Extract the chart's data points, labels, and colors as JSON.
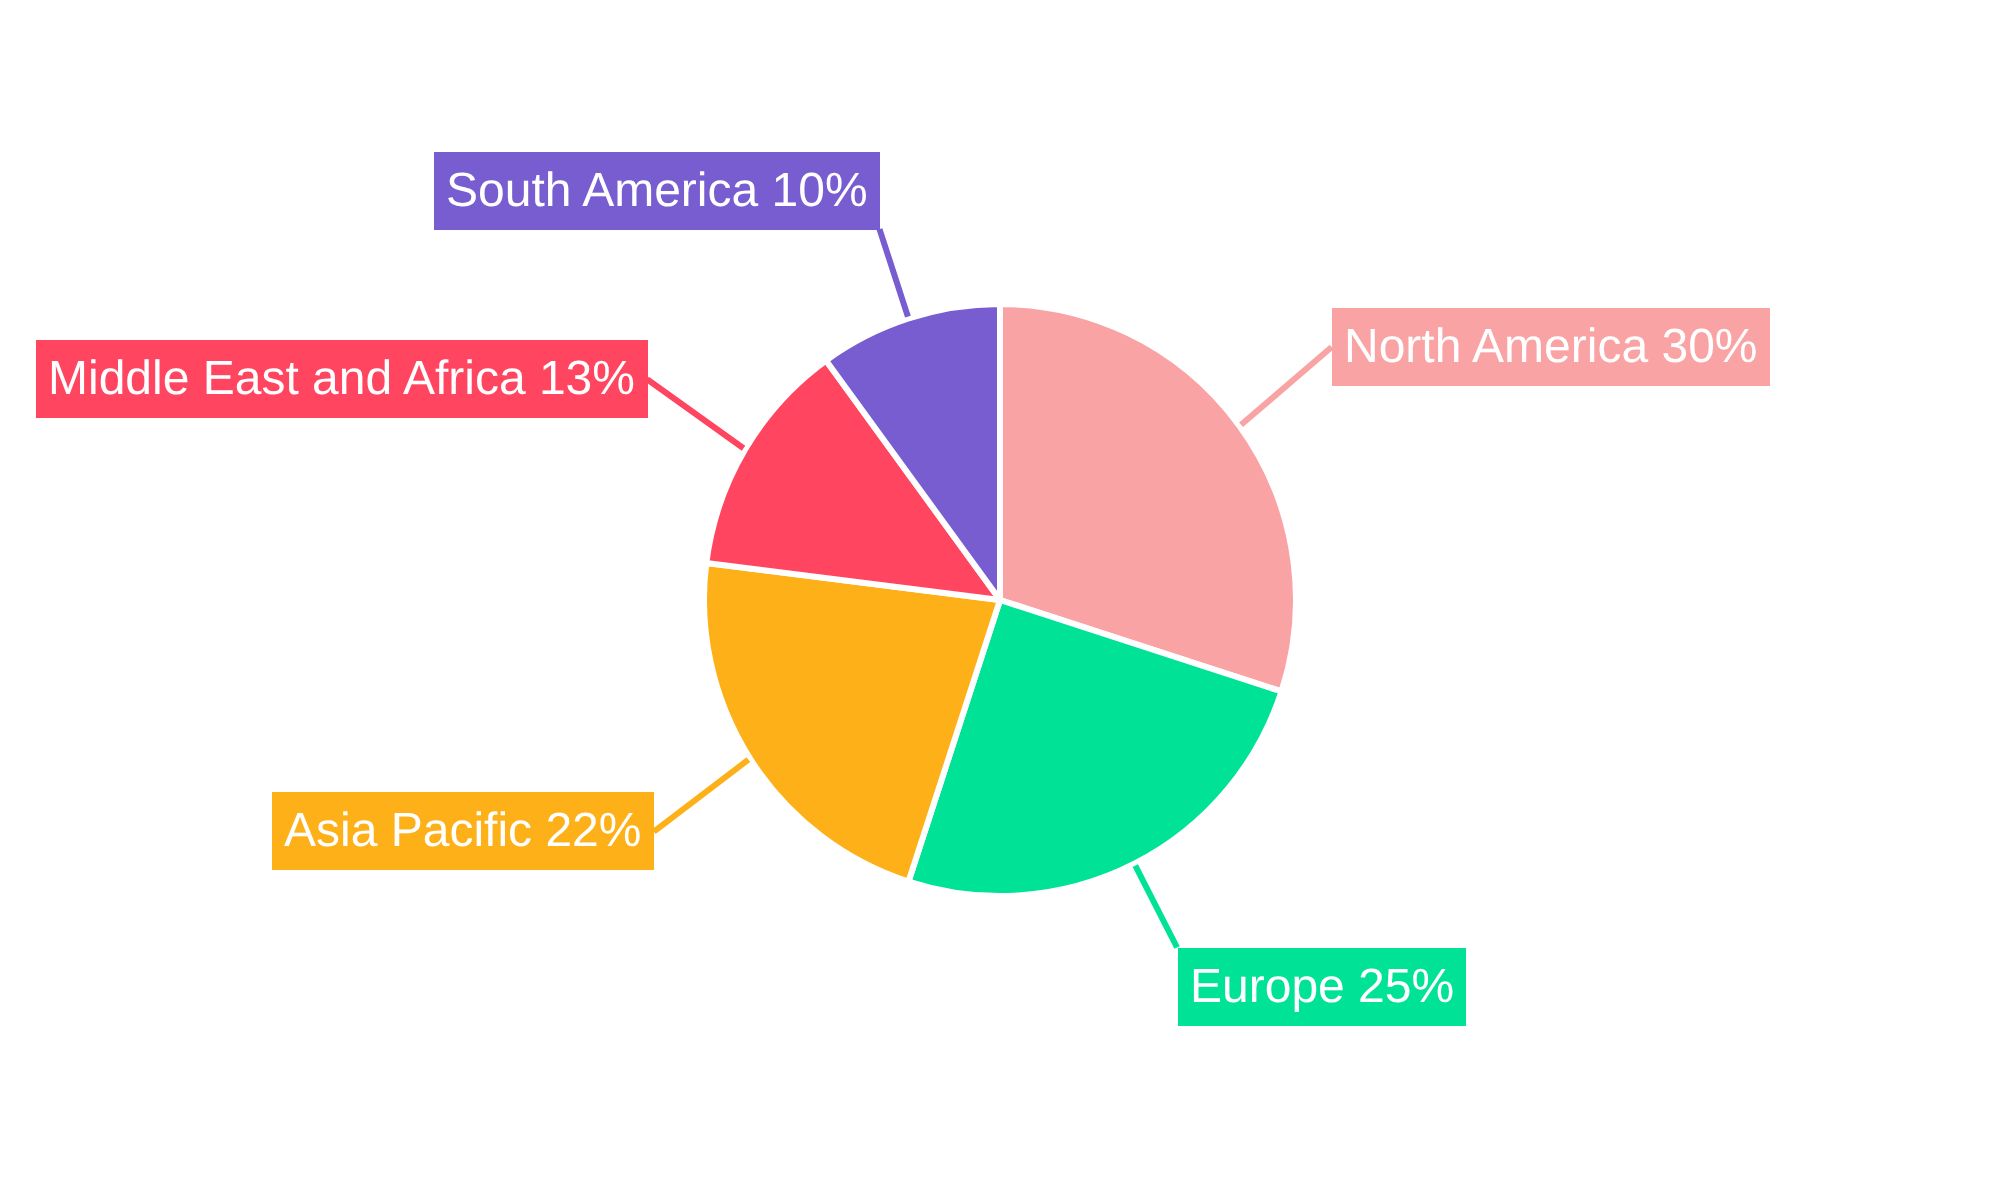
{
  "chart_data": {
    "type": "pie",
    "categories": [
      "North America",
      "Europe",
      "Asia Pacific",
      "Middle East and Africa",
      "South America"
    ],
    "values": [
      30,
      25,
      22,
      13,
      10
    ],
    "value_labels": [
      "30%",
      "25%",
      "22%",
      "13%",
      "10%"
    ],
    "colors": [
      "#f9a3a4",
      "#00e396",
      "#feb019",
      "#ff4560",
      "#775dd0"
    ]
  }
}
